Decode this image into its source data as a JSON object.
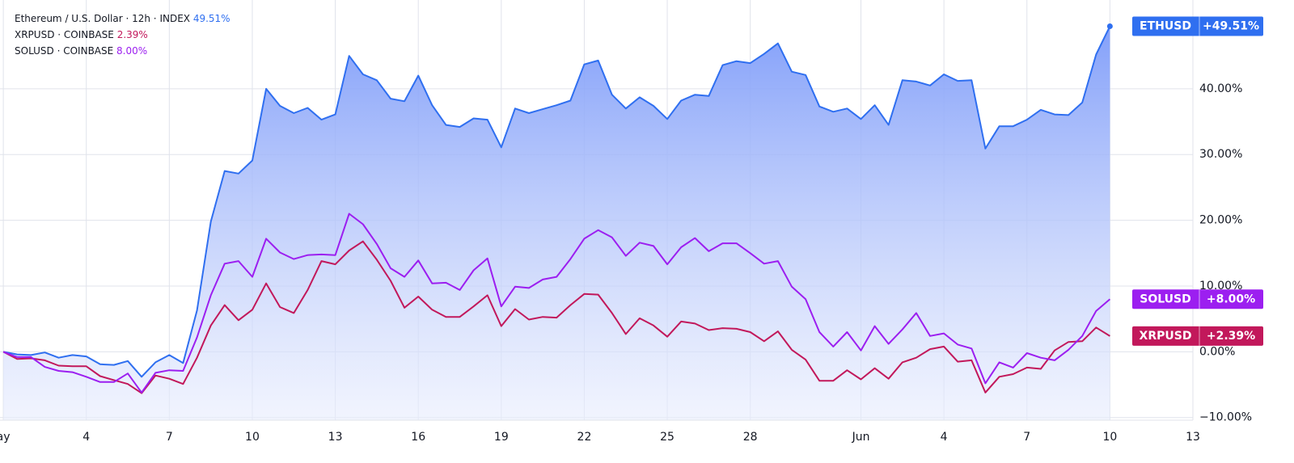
{
  "chart_data": {
    "type": "line",
    "x": [
      0,
      0.5,
      1,
      1.5,
      2,
      2.5,
      3,
      3.5,
      4,
      4.5,
      5,
      5.5,
      6,
      6.5,
      7,
      7.5,
      8,
      8.5,
      9,
      9.5,
      10,
      10.5,
      11,
      11.5,
      12,
      12.5,
      13,
      13.5,
      14,
      14.5,
      15,
      15.5,
      16,
      16.5,
      17,
      17.5,
      18,
      18.5,
      19,
      19.5,
      20,
      20.5,
      21,
      21.5,
      22,
      22.5,
      23,
      23.5,
      24,
      24.5,
      25,
      25.5,
      26,
      26.5,
      27,
      27.5,
      28,
      28.5,
      29,
      29.5,
      30,
      30.5,
      31,
      31.5,
      32,
      32.5,
      33,
      33.5,
      34,
      34.5,
      35,
      35.5,
      36,
      36.5,
      37,
      37.5,
      38,
      38.5,
      39,
      39.5,
      40
    ],
    "xlim": [
      -0.12,
      43
    ],
    "xticks": [
      {
        "value": 0,
        "label": "ay"
      },
      {
        "value": 3,
        "label": "4"
      },
      {
        "value": 6,
        "label": "7"
      },
      {
        "value": 9,
        "label": "10"
      },
      {
        "value": 12,
        "label": "13"
      },
      {
        "value": 15,
        "label": "16"
      },
      {
        "value": 18,
        "label": "19"
      },
      {
        "value": 21,
        "label": "22"
      },
      {
        "value": 24,
        "label": "25"
      },
      {
        "value": 27,
        "label": "28"
      },
      {
        "value": 31,
        "label": "Jun"
      },
      {
        "value": 34,
        "label": "4"
      },
      {
        "value": 37,
        "label": "7"
      },
      {
        "value": 40,
        "label": "10"
      },
      {
        "value": 43,
        "label": "13"
      }
    ],
    "ylim": [
      -10.4,
      53.5
    ],
    "yticks": [
      {
        "value": -10,
        "label": "−10.00%"
      },
      {
        "value": 0,
        "label": "0.00%"
      },
      {
        "value": 10,
        "label": "10.00%"
      },
      {
        "value": 20,
        "label": "20.00%"
      },
      {
        "value": 30,
        "label": "30.00%"
      },
      {
        "value": 40,
        "label": "40.00%"
      }
    ],
    "grid": true,
    "series": [
      {
        "name": "ETHUSD",
        "legend_label": "Ethereum / U.S. Dollar · 12h · INDEX",
        "legend_value": "49.51%",
        "badge": "+49.51%",
        "color": "#2f6ff0",
        "area": true,
        "values": [
          0,
          -0.4,
          -0.5,
          -0.1,
          -0.9,
          -0.5,
          -0.7,
          -1.9,
          -2.0,
          -1.4,
          -3.8,
          -1.6,
          -0.5,
          -1.7,
          6.3,
          19.8,
          27.5,
          27.1,
          29.1,
          40.0,
          37.4,
          36.3,
          37.1,
          35.3,
          36.1,
          45.0,
          42.2,
          41.3,
          38.5,
          38.1,
          42.0,
          37.5,
          34.5,
          34.2,
          35.5,
          35.3,
          31.1,
          37.0,
          36.3,
          36.9,
          37.5,
          38.2,
          43.7,
          44.3,
          39.1,
          37.0,
          38.7,
          37.4,
          35.4,
          38.2,
          39.1,
          38.9,
          43.6,
          44.2,
          43.9,
          45.3,
          46.9,
          42.6,
          42.1,
          37.3,
          36.5,
          37.0,
          35.4,
          37.5,
          34.5,
          41.3,
          41.1,
          40.5,
          42.2,
          41.2,
          41.3,
          30.9,
          34.3,
          34.3,
          35.3,
          36.8,
          36.1,
          36.0,
          37.9,
          45.2,
          49.51
        ]
      },
      {
        "name": "XRPUSD",
        "legend_label": "XRPUSD · COINBASE",
        "legend_value": "2.39%",
        "badge": "+2.39%",
        "color": "#c2185b",
        "values": [
          0,
          -1.1,
          -1.0,
          -1.3,
          -2.1,
          -2.2,
          -2.2,
          -3.7,
          -4.3,
          -4.9,
          -6.3,
          -3.6,
          -4.1,
          -4.9,
          -0.9,
          4.0,
          7.1,
          4.8,
          6.4,
          10.4,
          6.8,
          5.9,
          9.4,
          13.8,
          13.3,
          15.4,
          16.8,
          14.0,
          10.8,
          6.7,
          8.4,
          6.4,
          5.3,
          5.3,
          6.9,
          8.6,
          3.9,
          6.5,
          4.9,
          5.3,
          5.2,
          7.1,
          8.8,
          8.7,
          5.9,
          2.7,
          5.1,
          4.0,
          2.3,
          4.6,
          4.3,
          3.3,
          3.6,
          3.5,
          3.0,
          1.6,
          3.1,
          0.3,
          -1.2,
          -4.4,
          -4.4,
          -2.8,
          -4.2,
          -2.5,
          -4.1,
          -1.6,
          -0.9,
          0.4,
          0.8,
          -1.5,
          -1.3,
          -6.2,
          -3.8,
          -3.4,
          -2.4,
          -2.6,
          0.2,
          1.5,
          1.6,
          3.7,
          2.39
        ]
      },
      {
        "name": "SOLUSD",
        "legend_label": "SOLUSD · COINBASE",
        "legend_value": "8.00%",
        "badge": "+8.00%",
        "color": "#9c1ff0",
        "values": [
          0,
          -0.8,
          -0.8,
          -2.3,
          -2.9,
          -3.1,
          -3.8,
          -4.6,
          -4.6,
          -3.3,
          -6.2,
          -3.2,
          -2.8,
          -2.9,
          2.2,
          8.6,
          13.4,
          13.8,
          11.4,
          17.2,
          15.1,
          14.1,
          14.7,
          14.8,
          14.7,
          21.0,
          19.4,
          16.4,
          12.7,
          11.4,
          13.9,
          10.4,
          10.5,
          9.4,
          12.4,
          14.2,
          6.9,
          9.9,
          9.7,
          11.0,
          11.4,
          14.1,
          17.2,
          18.5,
          17.4,
          14.6,
          16.6,
          16.1,
          13.3,
          15.9,
          17.3,
          15.3,
          16.5,
          16.5,
          15.0,
          13.4,
          13.8,
          9.9,
          8.0,
          3.0,
          0.8,
          3.0,
          0.2,
          3.9,
          1.2,
          3.4,
          5.9,
          2.4,
          2.8,
          1.1,
          0.5,
          -4.8,
          -1.6,
          -2.4,
          -0.2,
          -0.9,
          -1.3,
          0.3,
          2.4,
          6.2,
          8.0
        ]
      }
    ]
  }
}
